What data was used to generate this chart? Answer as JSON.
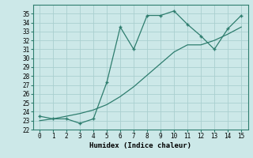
{
  "xlabel": "Humidex (Indice chaleur)",
  "x": [
    0,
    1,
    2,
    3,
    4,
    5,
    6,
    7,
    8,
    9,
    10,
    11,
    12,
    13,
    14,
    15
  ],
  "y_line": [
    23.5,
    23.2,
    23.2,
    22.7,
    23.2,
    27.3,
    33.5,
    31.0,
    34.8,
    34.8,
    35.3,
    33.8,
    32.5,
    31.0,
    33.3,
    34.8
  ],
  "y_trend": [
    23.0,
    23.2,
    23.5,
    23.8,
    24.2,
    24.8,
    25.7,
    26.8,
    28.1,
    29.4,
    30.7,
    31.5,
    31.5,
    32.0,
    32.7,
    33.5
  ],
  "line_color": "#2e7d6e",
  "bg_color": "#cce8e8",
  "grid_color": "#aacfcf",
  "ylim": [
    22,
    36
  ],
  "xlim": [
    -0.5,
    15.5
  ],
  "yticks": [
    22,
    23,
    24,
    25,
    26,
    27,
    28,
    29,
    30,
    31,
    32,
    33,
    34,
    35
  ],
  "xticks": [
    0,
    1,
    2,
    3,
    4,
    5,
    6,
    7,
    8,
    9,
    10,
    11,
    12,
    13,
    14,
    15
  ],
  "tick_fontsize": 5.5,
  "xlabel_fontsize": 6.5
}
